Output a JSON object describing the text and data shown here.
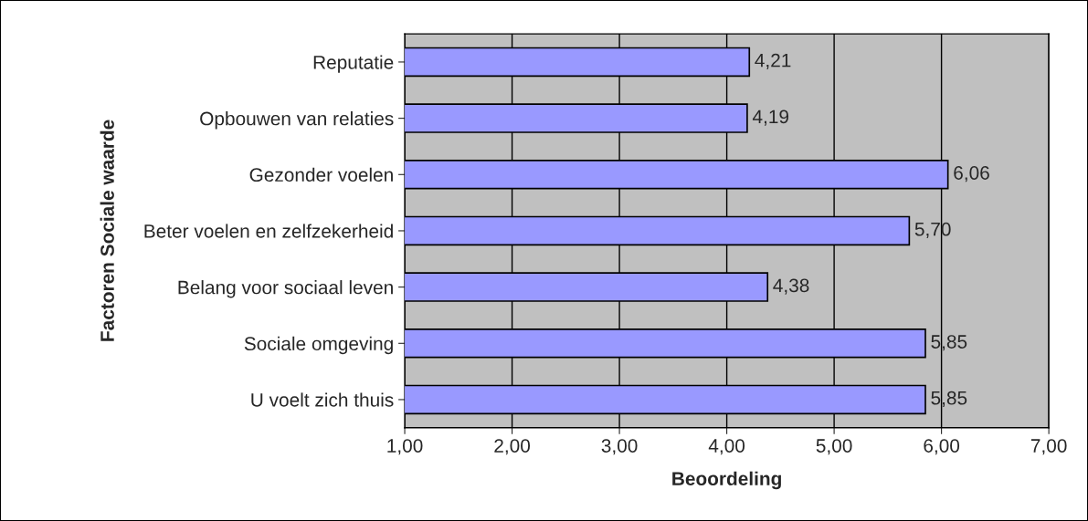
{
  "chart_data": {
    "type": "bar",
    "orientation": "horizontal",
    "xlabel": "Beoordeling",
    "ylabel": "Factoren Sociale waarde",
    "categories": [
      "Reputatie",
      "Opbouwen van relaties",
      "Gezonder voelen",
      "Beter voelen en zelfzekerheid",
      "Belang voor sociaal leven",
      "Sociale omgeving",
      "U voelt zich thuis"
    ],
    "values": [
      4.21,
      4.19,
      6.06,
      5.7,
      4.38,
      5.85,
      5.85
    ],
    "value_labels": [
      "4,21",
      "4,19",
      "6,06",
      "5,70",
      "4,38",
      "5,85",
      "5,85"
    ],
    "color": "#9999ff",
    "xlim": [
      1,
      7
    ],
    "xticks": [
      {
        "value": 1,
        "label": "1,00"
      },
      {
        "value": 2,
        "label": "2,00"
      },
      {
        "value": 3,
        "label": "3,00"
      },
      {
        "value": 4,
        "label": "4,00"
      },
      {
        "value": 5,
        "label": "5,00"
      },
      {
        "value": 6,
        "label": "6,00"
      },
      {
        "value": 7,
        "label": "7,00"
      }
    ],
    "grid": "x",
    "legend": false
  }
}
